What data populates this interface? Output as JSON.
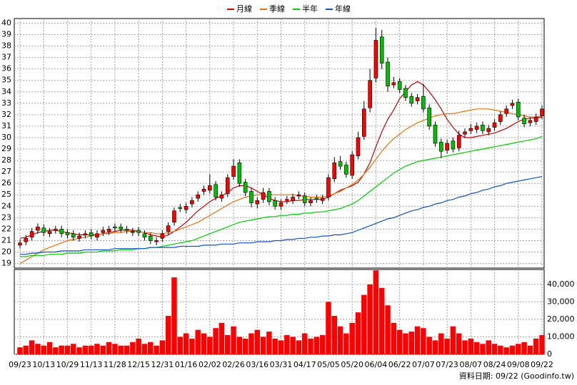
{
  "chart_data": [
    {
      "type": "candlestick",
      "categories": [
        "09/23",
        null,
        null,
        null,
        "10/13",
        null,
        null,
        null,
        "10/29",
        null,
        null,
        null,
        "11/13",
        null,
        null,
        null,
        "11/28",
        null,
        null,
        null,
        "12/15",
        null,
        null,
        null,
        "12/31",
        null,
        null,
        null,
        "01/16",
        null,
        null,
        null,
        "02/02",
        null,
        null,
        null,
        "02/26",
        null,
        null,
        null,
        "03/16",
        null,
        null,
        null,
        "03/31",
        null,
        null,
        null,
        "04/17",
        null,
        null,
        null,
        "05/05",
        null,
        null,
        null,
        "05/20",
        null,
        null,
        null,
        "06/04",
        null,
        null,
        null,
        "06/22",
        null,
        null,
        null,
        "07/07",
        null,
        null,
        null,
        "07/23",
        null,
        null,
        null,
        "08/07",
        null,
        null,
        null,
        "08/24",
        null,
        null,
        null,
        "09/08",
        null,
        null,
        null,
        "09/22"
      ],
      "open": [
        20.6,
        20.9,
        21.3,
        21.9,
        22.1,
        21.6,
        21.9,
        22.0,
        21.7,
        21.6,
        21.2,
        21.5,
        21.7,
        21.3,
        21.7,
        21.8,
        22.2,
        22.2,
        22.0,
        21.7,
        21.9,
        21.6,
        21.4,
        20.9,
        21.2,
        21.8,
        22.6,
        23.9,
        23.7,
        24.2,
        24.7,
        25.3,
        25.4,
        25.9,
        24.7,
        25.1,
        26.6,
        27.8,
        26.1,
        25.3,
        24.2,
        24.6,
        25.3,
        24.5,
        24.0,
        24.5,
        24.5,
        24.9,
        24.9,
        24.3,
        24.7,
        24.5,
        24.8,
        26.4,
        27.9,
        27.6,
        26.7,
        28.4,
        30.1,
        32.6,
        35.2,
        38.8,
        36.6,
        34.6,
        34.9,
        34.3,
        33.6,
        33.2,
        33.6,
        32.6,
        31.1,
        29.6,
        28.9,
        29.7,
        29.1,
        30.3,
        30.6,
        30.7,
        31.1,
        30.5,
        30.9,
        31.4,
        32.1,
        32.8,
        33.1,
        31.7,
        31.3,
        31.4,
        31.9
      ],
      "high": [
        21.1,
        21.5,
        22.1,
        22.5,
        22.4,
        22.1,
        22.3,
        22.3,
        22.0,
        21.9,
        21.7,
        21.9,
        22.0,
        21.9,
        22.2,
        22.3,
        22.5,
        22.5,
        22.3,
        22.1,
        22.2,
        21.9,
        21.7,
        21.3,
        21.9,
        22.6,
        23.9,
        24.2,
        24.3,
        24.8,
        25.3,
        25.8,
        26.8,
        26.2,
        25.3,
        26.8,
        28.1,
        28.1,
        26.4,
        25.6,
        24.8,
        25.6,
        25.6,
        24.8,
        24.6,
        24.9,
        25.1,
        25.3,
        25.2,
        24.8,
        25.0,
        25.0,
        26.8,
        28.3,
        28.4,
        27.9,
        28.8,
        30.5,
        33.2,
        36.0,
        39.6,
        39.4,
        37.0,
        35.3,
        35.2,
        34.6,
        33.9,
        33.8,
        34.7,
        32.9,
        31.4,
        29.9,
        29.8,
        30.0,
        30.6,
        30.8,
        31.2,
        31.3,
        31.4,
        31.1,
        31.6,
        32.3,
        32.8,
        33.3,
        33.4,
        32.0,
        31.8,
        32.1,
        32.8
      ],
      "low": [
        20.3,
        20.6,
        21.0,
        21.6,
        21.4,
        21.3,
        21.6,
        21.3,
        21.2,
        21.0,
        20.9,
        21.2,
        21.1,
        21.0,
        21.4,
        21.5,
        21.8,
        21.7,
        21.6,
        21.4,
        21.4,
        21.0,
        20.7,
        20.6,
        20.9,
        21.5,
        22.3,
        23.5,
        23.4,
        23.9,
        24.4,
        25.0,
        25.1,
        24.5,
        24.4,
        24.8,
        26.3,
        25.7,
        24.9,
        23.9,
        23.8,
        24.3,
        24.1,
        23.7,
        23.7,
        24.2,
        24.2,
        24.6,
        24.0,
        24.0,
        24.3,
        24.2,
        24.5,
        26.1,
        27.2,
        26.5,
        26.4,
        28.1,
        29.8,
        32.2,
        34.8,
        36.0,
        34.0,
        34.3,
        33.9,
        33.2,
        32.7,
        32.9,
        32.2,
        30.7,
        29.2,
        28.2,
        28.6,
        28.7,
        28.8,
        30.0,
        30.3,
        30.4,
        30.3,
        30.2,
        30.6,
        31.1,
        31.8,
        32.5,
        31.5,
        30.9,
        31.0,
        31.1,
        31.6
      ],
      "close": [
        20.8,
        21.2,
        21.8,
        22.2,
        21.7,
        21.8,
        22.0,
        21.6,
        21.5,
        21.3,
        21.4,
        21.6,
        21.4,
        21.6,
        21.9,
        22.0,
        22.1,
        22.0,
        21.9,
        21.8,
        21.7,
        21.3,
        21.0,
        21.0,
        21.6,
        22.3,
        23.6,
        23.8,
        24.0,
        24.5,
        25.0,
        25.5,
        25.8,
        24.8,
        25.0,
        26.5,
        27.5,
        26.0,
        25.2,
        24.3,
        24.5,
        25.2,
        24.4,
        24.0,
        24.3,
        24.6,
        24.8,
        25.0,
        24.3,
        24.5,
        24.6,
        24.7,
        26.5,
        27.8,
        27.5,
        26.8,
        28.5,
        30.0,
        32.5,
        35.0,
        38.5,
        36.5,
        34.5,
        34.8,
        34.2,
        33.5,
        33.0,
        33.5,
        32.5,
        31.0,
        29.5,
        28.8,
        29.5,
        29.0,
        30.2,
        30.5,
        30.8,
        31.0,
        30.6,
        30.8,
        31.3,
        32.0,
        32.5,
        33.0,
        31.8,
        31.2,
        31.5,
        31.8,
        32.5
      ],
      "up_color": "#ff0000",
      "down_color": "#00c000",
      "series": [
        {
          "name": "月線",
          "color": "#cc0000",
          "values": [
            21.2,
            21.3,
            21.5,
            21.7,
            21.8,
            21.9,
            21.9,
            21.8,
            21.7,
            21.6,
            21.5,
            21.5,
            21.5,
            21.5,
            21.6,
            21.7,
            21.8,
            21.9,
            21.9,
            21.9,
            21.8,
            21.7,
            21.5,
            21.4,
            21.3,
            21.5,
            21.8,
            22.2,
            22.6,
            23.1,
            23.6,
            24.0,
            24.4,
            24.7,
            24.9,
            25.2,
            25.6,
            25.8,
            25.8,
            25.6,
            25.3,
            25.0,
            24.7,
            24.5,
            24.4,
            24.4,
            24.5,
            24.5,
            24.6,
            24.6,
            24.6,
            24.6,
            24.8,
            25.1,
            25.4,
            25.6,
            25.8,
            26.1,
            26.8,
            27.8,
            29.2,
            30.5,
            31.6,
            32.4,
            33.4,
            34.0,
            34.6,
            34.9,
            34.6,
            34.0,
            33.3,
            32.5,
            31.6,
            30.9,
            30.3,
            30.0,
            30.0,
            30.1,
            30.2,
            30.3,
            30.4,
            30.6,
            30.8,
            31.1,
            31.4,
            31.6,
            31.7,
            31.7,
            31.8
          ]
        },
        {
          "name": "季線",
          "color": "#e8700a",
          "values": [
            19.0,
            19.3,
            19.6,
            19.9,
            20.2,
            20.4,
            20.6,
            20.8,
            21.0,
            21.1,
            21.2,
            21.3,
            21.4,
            21.5,
            21.6,
            21.6,
            21.7,
            21.7,
            21.8,
            21.8,
            21.8,
            21.7,
            21.7,
            21.6,
            21.6,
            21.7,
            21.8,
            22.0,
            22.2,
            22.4,
            22.6,
            22.9,
            23.2,
            23.5,
            23.8,
            24.1,
            24.4,
            24.6,
            24.8,
            24.9,
            25.0,
            25.0,
            25.0,
            25.0,
            25.0,
            25.0,
            25.0,
            24.9,
            24.9,
            24.8,
            24.8,
            24.8,
            24.9,
            25.1,
            25.3,
            25.6,
            25.9,
            26.3,
            26.8,
            27.4,
            28.1,
            28.8,
            29.4,
            29.9,
            30.3,
            30.7,
            31.0,
            31.3,
            31.5,
            31.7,
            31.9,
            32.0,
            32.1,
            32.1,
            32.2,
            32.3,
            32.4,
            32.5,
            32.5,
            32.5,
            32.4,
            32.3,
            32.2,
            32.1,
            32.0,
            31.9,
            31.8,
            31.8,
            31.9
          ]
        },
        {
          "name": "半年",
          "color": "#00cc00",
          "values": [
            19.6,
            19.6,
            19.7,
            19.7,
            19.7,
            19.8,
            19.8,
            19.8,
            19.9,
            19.9,
            19.9,
            20.0,
            20.0,
            20.0,
            20.1,
            20.1,
            20.1,
            20.2,
            20.2,
            20.2,
            20.3,
            20.3,
            20.4,
            20.4,
            20.5,
            20.6,
            20.7,
            20.8,
            20.9,
            21.0,
            21.2,
            21.4,
            21.6,
            21.8,
            22.0,
            22.2,
            22.4,
            22.6,
            22.7,
            22.8,
            22.9,
            23.0,
            23.1,
            23.1,
            23.2,
            23.2,
            23.3,
            23.3,
            23.4,
            23.4,
            23.5,
            23.5,
            23.6,
            23.7,
            23.8,
            24.0,
            24.2,
            24.5,
            24.9,
            25.3,
            25.7,
            26.1,
            26.5,
            26.9,
            27.2,
            27.5,
            27.7,
            27.9,
            28.0,
            28.1,
            28.2,
            28.3,
            28.4,
            28.5,
            28.6,
            28.7,
            28.8,
            28.9,
            29.0,
            29.1,
            29.2,
            29.3,
            29.4,
            29.5,
            29.6,
            29.7,
            29.8,
            29.9,
            30.1
          ]
        },
        {
          "name": "年線",
          "color": "#1050c8",
          "values": [
            19.8,
            19.8,
            19.9,
            19.9,
            20.0,
            20.0,
            20.0,
            20.1,
            20.1,
            20.1,
            20.1,
            20.2,
            20.2,
            20.2,
            20.2,
            20.2,
            20.3,
            20.3,
            20.3,
            20.3,
            20.3,
            20.3,
            20.4,
            20.4,
            20.4,
            20.4,
            20.4,
            20.5,
            20.5,
            20.5,
            20.5,
            20.6,
            20.6,
            20.6,
            20.7,
            20.7,
            20.7,
            20.8,
            20.8,
            20.8,
            20.9,
            20.9,
            20.9,
            21.0,
            21.0,
            21.1,
            21.1,
            21.2,
            21.2,
            21.3,
            21.3,
            21.4,
            21.4,
            21.5,
            21.5,
            21.6,
            21.7,
            21.9,
            22.1,
            22.3,
            22.5,
            22.7,
            22.9,
            23.0,
            23.2,
            23.4,
            23.6,
            23.7,
            23.9,
            24.0,
            24.2,
            24.3,
            24.5,
            24.6,
            24.8,
            24.9,
            25.1,
            25.2,
            25.4,
            25.5,
            25.7,
            25.8,
            26.0,
            26.1,
            26.2,
            26.3,
            26.4,
            26.5,
            26.6
          ]
        }
      ],
      "ylim": [
        18.6,
        40.4
      ],
      "yticks": [
        19,
        20,
        21,
        22,
        23,
        24,
        25,
        26,
        27,
        28,
        29,
        30,
        31,
        32,
        33,
        34,
        35,
        36,
        37,
        38,
        39,
        40
      ],
      "grid": true,
      "legend": "top"
    },
    {
      "type": "bar",
      "values": [
        4000,
        5000,
        8000,
        6000,
        5000,
        7000,
        4000,
        5000,
        5000,
        6000,
        4000,
        5000,
        5000,
        6000,
        5000,
        7000,
        6000,
        5000,
        5000,
        7000,
        9000,
        6000,
        7000,
        5000,
        8000,
        22000,
        44000,
        10000,
        12000,
        9000,
        14000,
        12000,
        10000,
        15000,
        18000,
        11000,
        16000,
        10000,
        9000,
        12000,
        14000,
        10000,
        13000,
        9000,
        8000,
        11000,
        10000,
        8000,
        12000,
        9000,
        10000,
        11000,
        30000,
        22000,
        16000,
        12000,
        18000,
        24000,
        34000,
        40000,
        48000,
        38000,
        28000,
        18000,
        14000,
        12000,
        13000,
        16000,
        15000,
        10000,
        8000,
        12000,
        9000,
        16000,
        12000,
        8000,
        9000,
        7000,
        6000,
        8000,
        6000,
        5000,
        4000,
        5000,
        6000,
        7000,
        5000,
        9000,
        11000
      ],
      "color": "#ff0000",
      "ylim": [
        0,
        48500
      ],
      "yticks": [
        0,
        {
          "value": 10000,
          "label": "10,000"
        },
        {
          "value": 20000,
          "label": "20,000"
        },
        {
          "value": 30000,
          "label": "30,000"
        },
        {
          "value": 40000,
          "label": "40,000"
        }
      ],
      "grid": true,
      "note": "資料日期: 09/22 (Goodinfo.tw)"
    }
  ]
}
